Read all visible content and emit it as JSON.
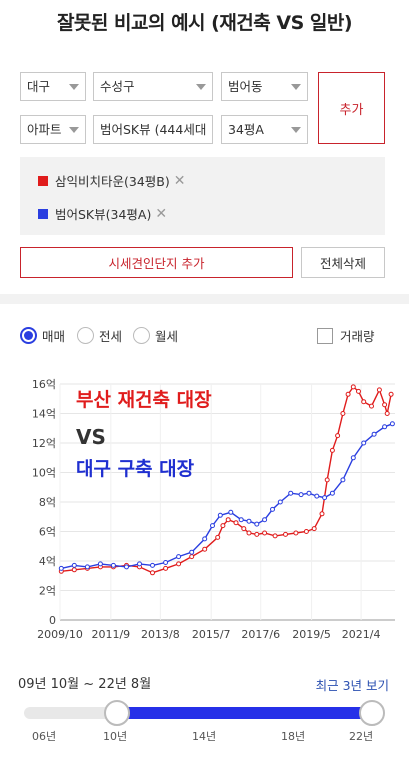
{
  "title": "잘못된 비교의 예시 (재건축 VS 일반)",
  "selectors": {
    "city": "대구",
    "district": "수성구",
    "dong": "범어동",
    "type": "아파트",
    "complex": "범어SK뷰 (444세대",
    "size": "34평A"
  },
  "add_button": "추가",
  "compare_items": [
    {
      "name": "삼익비치타운(34평B)",
      "color": "#e01c1c"
    },
    {
      "name": "범어SK뷰(34평A)",
      "color": "#2a3ee0"
    }
  ],
  "add_complex_button": "시세견인단지 추가",
  "delete_all_button": "전체삭제",
  "trade_types": [
    {
      "label": "매매",
      "selected": true
    },
    {
      "label": "전세",
      "selected": false
    },
    {
      "label": "월세",
      "selected": false
    }
  ],
  "volume_label": "거래량",
  "overlay": {
    "line1": "부산 재건축 대장",
    "line2": "VS",
    "line3": "대구 구축 대장"
  },
  "chart_data": {
    "type": "line",
    "y_ticks": [
      "16억",
      "14억",
      "12억",
      "10억",
      "8억",
      "6억",
      "4억",
      "2억",
      "0"
    ],
    "x_ticks": [
      "2009/10",
      "2011/9",
      "2013/8",
      "2015/7",
      "2017/6",
      "2019/5",
      "2021/4"
    ],
    "ylim": [
      0,
      16
    ],
    "xlim": [
      2009.75,
      2022.6
    ],
    "series": [
      {
        "name": "삼익비치타운(34평B)",
        "color": "#e01c1c",
        "x": [
          2009.8,
          2010.3,
          2010.8,
          2011.3,
          2011.8,
          2012.3,
          2012.8,
          2013.3,
          2013.8,
          2014.3,
          2014.8,
          2015.3,
          2015.8,
          2016.0,
          2016.2,
          2016.5,
          2016.8,
          2017.0,
          2017.3,
          2017.6,
          2018.0,
          2018.4,
          2018.8,
          2019.2,
          2019.5,
          2019.8,
          2020.0,
          2020.2,
          2020.4,
          2020.6,
          2020.8,
          2021.0,
          2021.2,
          2021.4,
          2021.7,
          2022.0,
          2022.2,
          2022.3,
          2022.45
        ],
        "y": [
          3.3,
          3.4,
          3.5,
          3.6,
          3.6,
          3.7,
          3.6,
          3.2,
          3.5,
          3.8,
          4.3,
          4.8,
          5.6,
          6.4,
          6.8,
          6.6,
          6.2,
          5.9,
          5.8,
          5.9,
          5.7,
          5.8,
          5.9,
          6.0,
          6.2,
          7.2,
          9.5,
          11.5,
          12.5,
          14.0,
          15.3,
          15.8,
          15.5,
          14.8,
          14.5,
          15.6,
          14.6,
          14.0,
          15.3
        ]
      },
      {
        "name": "범어SK뷰(34평A)",
        "color": "#2a3ee0",
        "x": [
          2009.8,
          2010.3,
          2010.8,
          2011.3,
          2011.8,
          2012.3,
          2012.8,
          2013.3,
          2013.8,
          2014.3,
          2014.8,
          2015.3,
          2015.6,
          2015.9,
          2016.3,
          2016.7,
          2017.0,
          2017.3,
          2017.6,
          2017.9,
          2018.2,
          2018.6,
          2019.0,
          2019.3,
          2019.6,
          2019.9,
          2020.2,
          2020.6,
          2021.0,
          2021.4,
          2021.8,
          2022.2,
          2022.5
        ],
        "y": [
          3.5,
          3.7,
          3.6,
          3.8,
          3.7,
          3.6,
          3.8,
          3.7,
          3.9,
          4.3,
          4.6,
          5.5,
          6.4,
          7.1,
          7.3,
          6.8,
          6.7,
          6.5,
          6.8,
          7.5,
          8.0,
          8.6,
          8.5,
          8.6,
          8.4,
          8.3,
          8.6,
          9.5,
          11.0,
          12.0,
          12.6,
          13.1,
          13.3
        ]
      }
    ]
  },
  "range": {
    "label": "09년 10월 ~ 22년 8월",
    "recent_link": "최근 3년 보기",
    "ticks": [
      "06년",
      "10년",
      "14년",
      "18년",
      "22년"
    ],
    "start_fraction": 0.27,
    "end_fraction": 1.0
  },
  "colors": {
    "accent_red": "#c8232c",
    "accent_blue": "#2630e8"
  }
}
